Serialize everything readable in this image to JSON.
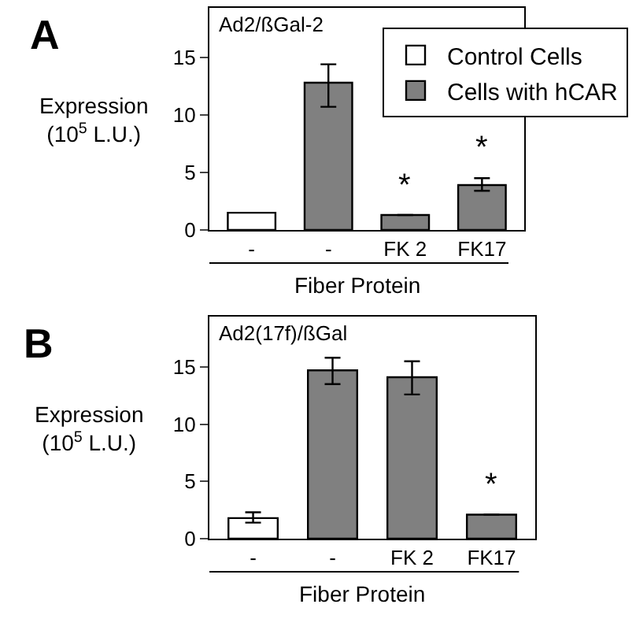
{
  "chart_data": [
    {
      "type": "bar",
      "title": "Ad2/ßGal-2",
      "xlabel": "Fiber Protein",
      "ylabel": "Expression\n(10$^{5}$ L.U.)",
      "categories": [
        "-",
        "-",
        "FK 2",
        "FK17"
      ],
      "series": [
        {
          "name": "Control Cells",
          "color": "#ffffff",
          "values": [
            1.5,
            null,
            null,
            null
          ]
        },
        {
          "name": "Cells with hCAR",
          "color": "#808080",
          "values": [
            null,
            12.8,
            1.3,
            3.9
          ],
          "errors": [
            null,
            [
              10.7,
              14.4
            ],
            null,
            [
              3.4,
              4.5
            ]
          ]
        }
      ],
      "ylim": [
        0,
        19.3
      ],
      "yticks": [
        0,
        5,
        10,
        15
      ],
      "grid": false,
      "legend": "top right",
      "annotations": [
        "A",
        {
          "text": "*",
          "x": "FK 2",
          "y": 1.3
        },
        {
          "text": "*",
          "x": "FK17",
          "y": 3.9
        }
      ]
    },
    {
      "type": "bar",
      "title": "Ad2(17f)/ßGal",
      "xlabel": "Fiber Protein",
      "ylabel": "Expression\n(10$^{5}$ L.U.)",
      "categories": [
        "-",
        "-",
        "FK 2",
        "FK17"
      ],
      "series": [
        {
          "color": "#ffffff",
          "values": [
            1.8,
            null,
            null,
            null
          ],
          "errors": [
            [
              1.4,
              2.3
            ],
            null,
            null,
            null
          ]
        },
        {
          "color": "#808080",
          "values": [
            null,
            14.7,
            14.1,
            2.1
          ],
          "errors": [
            null,
            [
              13.5,
              15.8
            ],
            [
              12.6,
              15.5
            ],
            null
          ]
        }
      ],
      "ylim": [
        0,
        19.4
      ],
      "yticks": [
        0,
        5,
        10,
        15
      ],
      "grid": false,
      "legend": false,
      "annotations": [
        "B",
        {
          "text": "*",
          "x": "FK17",
          "y": 2.1
        }
      ]
    }
  ]
}
